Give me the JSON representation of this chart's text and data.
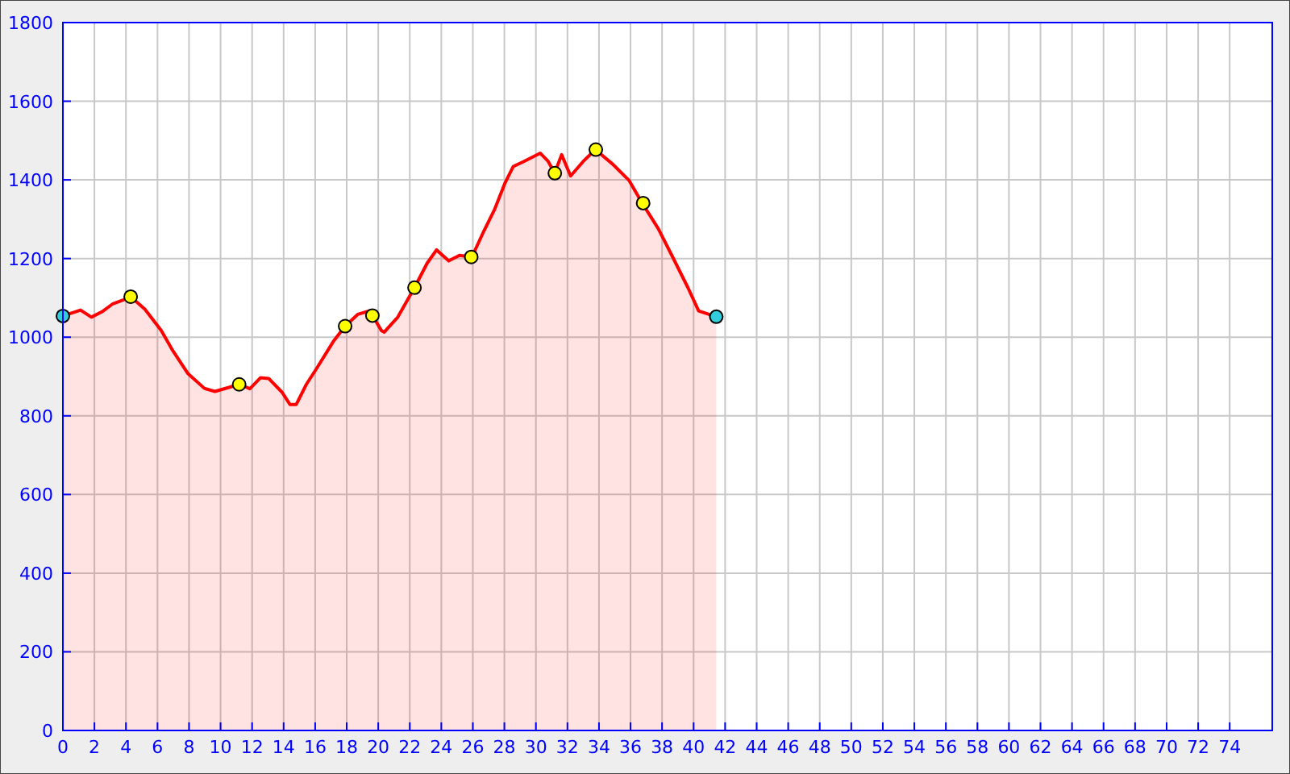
{
  "chart_data": {
    "type": "area",
    "xlim": [
      0,
      76.7
    ],
    "xticks": [
      0,
      2,
      4,
      6,
      8,
      10,
      12,
      14,
      16,
      18,
      20,
      22,
      24,
      26,
      28,
      30,
      32,
      34,
      36,
      38,
      40,
      42,
      44,
      46,
      48,
      50,
      52,
      54,
      56,
      58,
      60,
      62,
      64,
      66,
      68,
      70,
      72,
      74
    ],
    "ylim": [
      0,
      1800
    ],
    "yticks": [
      0,
      200,
      400,
      600,
      800,
      1000,
      1200,
      1400,
      1600,
      1800
    ],
    "grid": true,
    "series": [
      {
        "color": "#ff0000",
        "x": [
          0,
          1.12,
          1.81,
          2.49,
          3.17,
          3.85,
          4.3,
          5.2,
          6.24,
          6.92,
          7.94,
          8.97,
          9.64,
          11.2,
          11.86,
          12.54,
          13.05,
          13.9,
          14.4,
          14.8,
          15.44,
          16.1,
          17.15,
          17.9,
          18.7,
          19.46,
          20.2,
          20.38,
          21.24,
          22.3,
          23.1,
          23.7,
          24.47,
          25.15,
          25.94,
          26.7,
          27.37,
          28.05,
          28.56,
          29.24,
          30.27,
          30.78,
          31.19,
          31.63,
          32.2,
          33,
          33.77,
          34.87,
          35.9,
          36.74,
          37.76,
          38.62,
          39.64,
          40.32,
          41.44
        ],
        "values": [
          1054,
          1069,
          1051,
          1065,
          1085,
          1095,
          1103,
          1071,
          1017,
          969,
          907,
          870,
          862,
          880,
          869,
          897,
          895,
          860,
          829,
          829,
          880,
          921,
          989,
          1028,
          1058,
          1067,
          1017,
          1013,
          1051,
          1126,
          1188,
          1222,
          1194,
          1208,
          1204,
          1270,
          1324,
          1393,
          1434,
          1447,
          1468,
          1447,
          1417,
          1464,
          1410,
          1447,
          1477,
          1440,
          1399,
          1341,
          1276,
          1208,
          1126,
          1067,
          1052
        ]
      },
      {
        "type": "scatter",
        "marker": "circle",
        "x": [
          0,
          4.3,
          11.18,
          17.9,
          19.63,
          22.3,
          25.9,
          31.2,
          33.8,
          36.8,
          41.44
        ],
        "values": [
          1054,
          1103,
          880,
          1028,
          1055,
          1126,
          1204,
          1417,
          1477,
          1341,
          1052
        ],
        "colors": [
          "#33ccdd",
          "#ffff00",
          "#ffff00",
          "#ffff00",
          "#ffff00",
          "#ffff00",
          "#ffff00",
          "#ffff00",
          "#ffff00",
          "#ffff00",
          "#33ccdd"
        ]
      }
    ]
  }
}
